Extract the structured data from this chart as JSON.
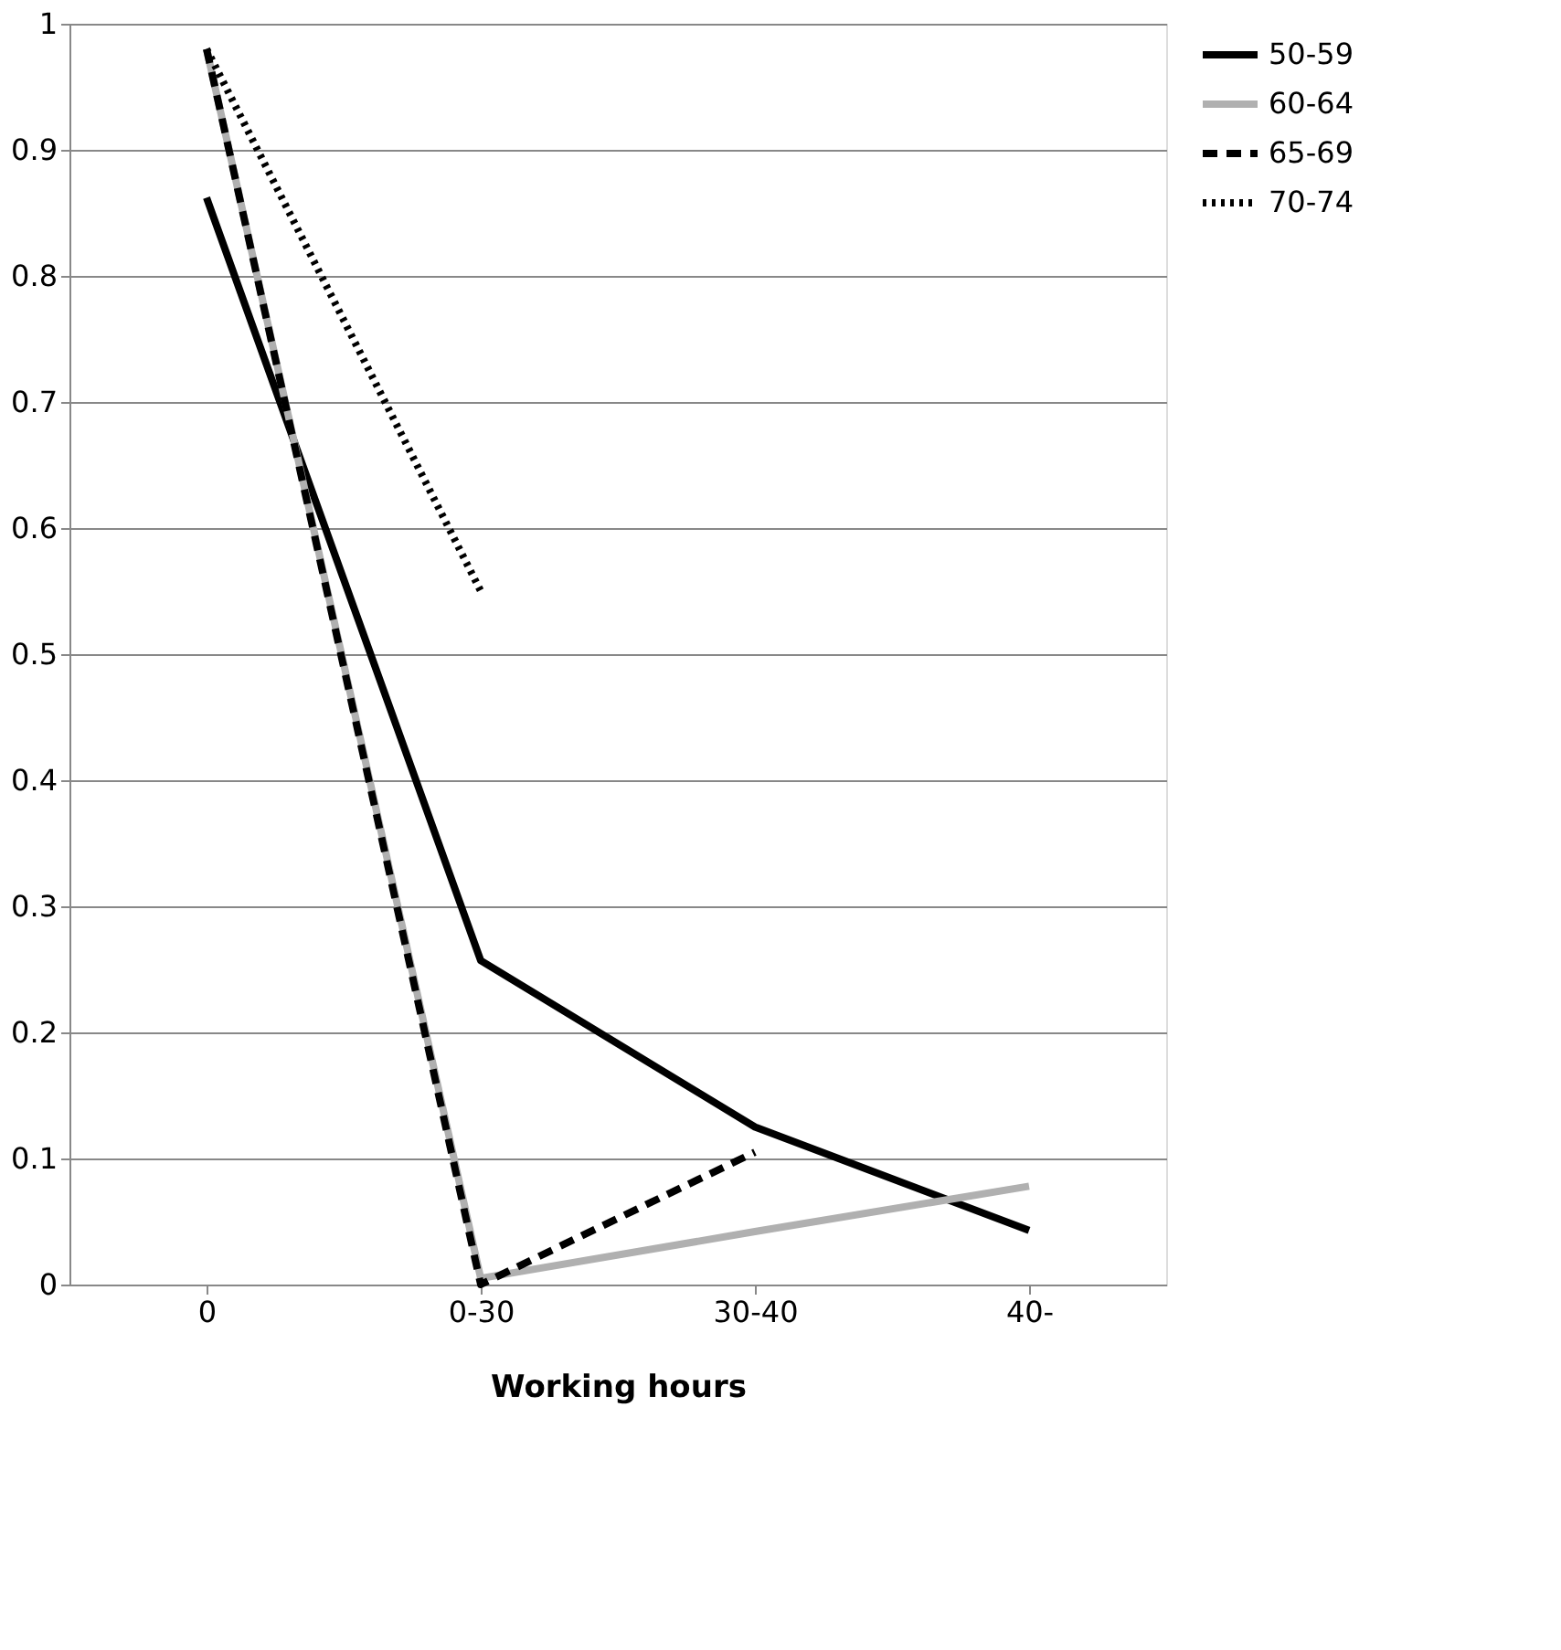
{
  "chart_data": {
    "type": "line",
    "xlabel": "Working hours",
    "categories": [
      "0",
      "0-30",
      "30-40",
      "40-"
    ],
    "series": [
      {
        "name": "50-59",
        "color": "#000000",
        "line_style": "solid",
        "values": [
          0.862,
          0.257,
          0.125,
          0.043
        ]
      },
      {
        "name": "60-64",
        "color": "#b0b0b0",
        "line_style": "solid",
        "values": [
          0.98,
          0.005,
          0.042,
          0.078
        ]
      },
      {
        "name": "65-69",
        "color": "#000000",
        "line_style": "dashed",
        "values": [
          0.98,
          0.0,
          0.105,
          null
        ]
      },
      {
        "name": "70-74",
        "color": "#000000",
        "line_style": "dotted",
        "values": [
          0.98,
          0.55,
          null,
          null
        ]
      }
    ],
    "ylim": [
      0,
      1
    ],
    "yticks": [
      0,
      0.1,
      0.2,
      0.3,
      0.4,
      0.5,
      0.6,
      0.7,
      0.8,
      0.9,
      1
    ],
    "grid": "y",
    "legend": "right",
    "marker": "none"
  }
}
